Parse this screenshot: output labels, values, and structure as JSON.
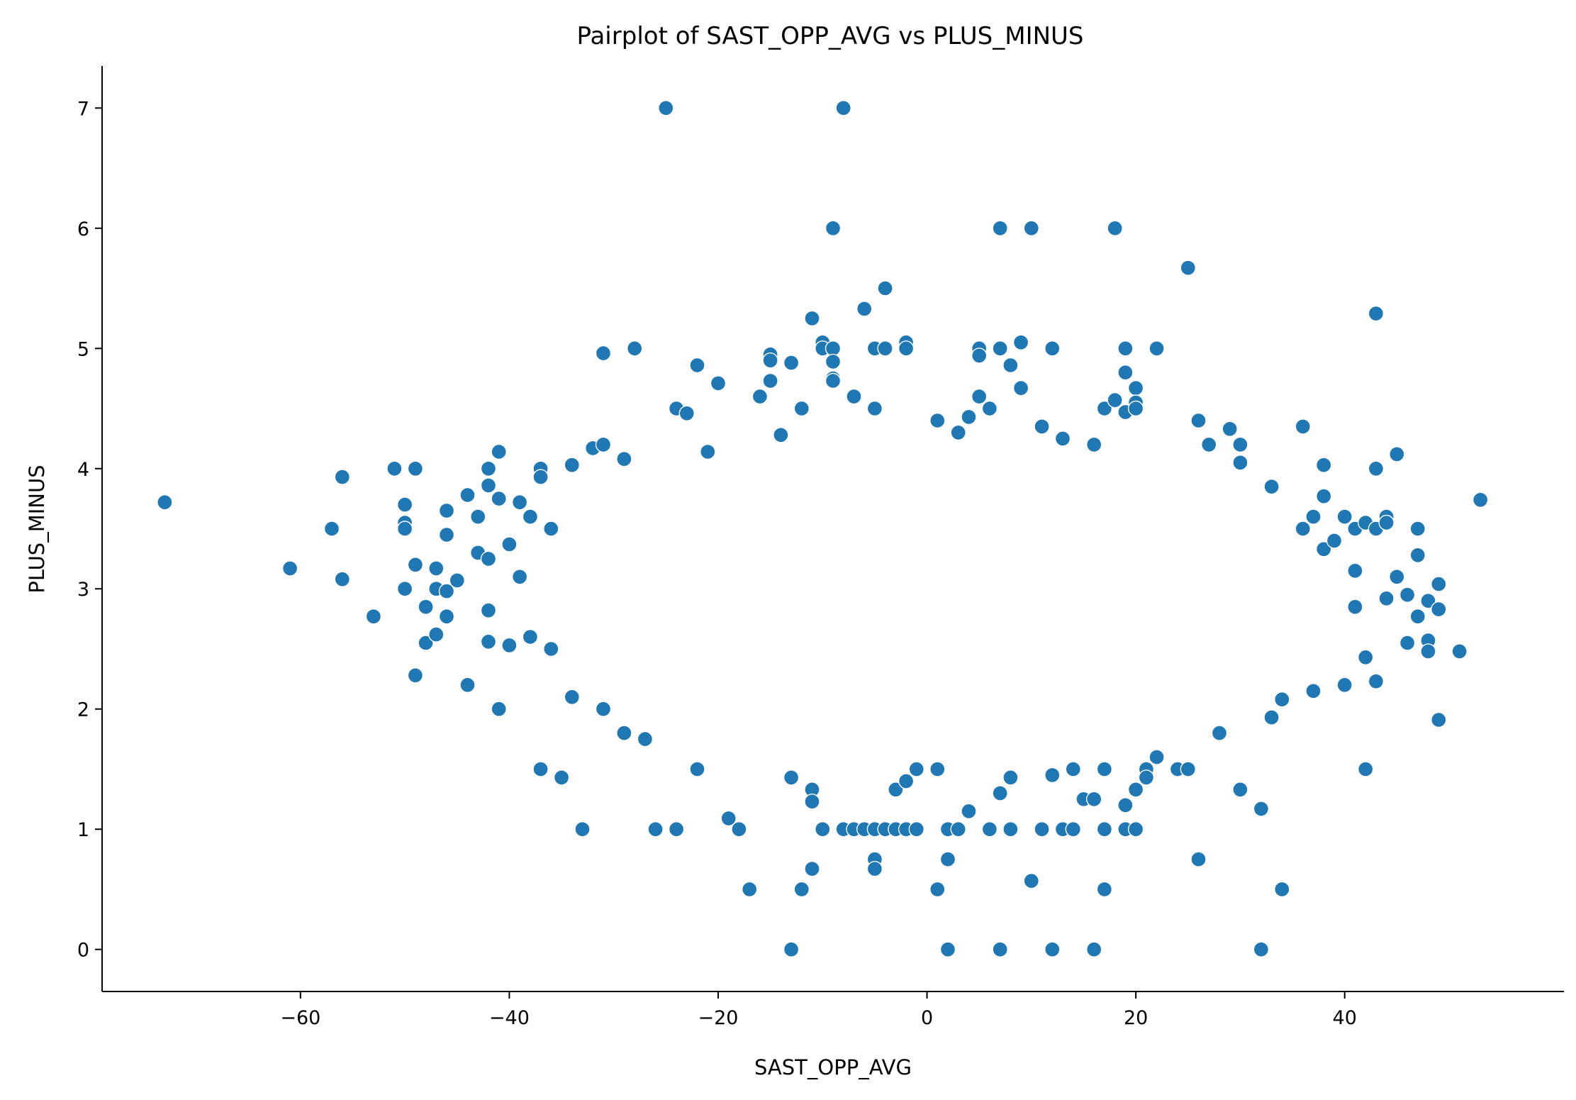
{
  "chart_data": {
    "type": "scatter",
    "title": "Pairplot of SAST_OPP_AVG vs PLUS_MINUS",
    "xlabel": "SAST_OPP_AVG",
    "ylabel": "PLUS_MINUS",
    "xlim": [
      -79,
      61
    ],
    "ylim": [
      -0.35,
      7.35
    ],
    "xticks": [
      -60,
      -40,
      -20,
      0,
      20,
      40
    ],
    "xtick_labels": [
      "−60",
      "−40",
      "−20",
      "0",
      "20",
      "40"
    ],
    "yticks": [
      0,
      1,
      2,
      3,
      4,
      5,
      6,
      7
    ],
    "ytick_labels": [
      "0",
      "1",
      "2",
      "3",
      "4",
      "5",
      "6",
      "7"
    ],
    "grid": false,
    "marker_color": "#1f77b4",
    "marker_edge_color": "#ffffff",
    "points": [
      [
        -73,
        3.72
      ],
      [
        -61,
        3.17
      ],
      [
        -57,
        3.5
      ],
      [
        -56,
        3.93
      ],
      [
        -56,
        3.08
      ],
      [
        -53,
        2.77
      ],
      [
        -51,
        4.0
      ],
      [
        -50,
        3.7
      ],
      [
        -50,
        3.55
      ],
      [
        -50,
        3.5
      ],
      [
        -50,
        3.0
      ],
      [
        -49,
        4.0
      ],
      [
        -49,
        3.2
      ],
      [
        -49,
        2.28
      ],
      [
        -48,
        2.85
      ],
      [
        -48,
        2.55
      ],
      [
        -47,
        3.17
      ],
      [
        -47,
        3.0
      ],
      [
        -47,
        2.62
      ],
      [
        -46,
        3.65
      ],
      [
        -46,
        3.45
      ],
      [
        -46,
        2.98
      ],
      [
        -46,
        2.77
      ],
      [
        -45,
        3.07
      ],
      [
        -44,
        3.78
      ],
      [
        -44,
        2.2
      ],
      [
        -43,
        3.6
      ],
      [
        -43,
        3.3
      ],
      [
        -42,
        4.0
      ],
      [
        -42,
        3.86
      ],
      [
        -42,
        3.25
      ],
      [
        -42,
        2.82
      ],
      [
        -42,
        2.56
      ],
      [
        -41,
        4.14
      ],
      [
        -41,
        3.75
      ],
      [
        -41,
        2.0
      ],
      [
        -40,
        3.37
      ],
      [
        -40,
        2.53
      ],
      [
        -39,
        3.72
      ],
      [
        -39,
        3.1
      ],
      [
        -38,
        3.6
      ],
      [
        -38,
        2.6
      ],
      [
        -37,
        4.0
      ],
      [
        -37,
        3.93
      ],
      [
        -37,
        1.5
      ],
      [
        -36,
        3.5
      ],
      [
        -36,
        2.5
      ],
      [
        -35,
        1.43
      ],
      [
        -34,
        4.03
      ],
      [
        -34,
        2.1
      ],
      [
        -33,
        1.0
      ],
      [
        -32,
        4.17
      ],
      [
        -31,
        4.2
      ],
      [
        -31,
        4.96
      ],
      [
        -31,
        2.0
      ],
      [
        -29,
        4.08
      ],
      [
        -29,
        1.8
      ],
      [
        -28,
        5.0
      ],
      [
        -27,
        1.75
      ],
      [
        -26,
        1.0
      ],
      [
        -25,
        7.0
      ],
      [
        -24,
        4.5
      ],
      [
        -24,
        1.0
      ],
      [
        -23,
        4.46
      ],
      [
        -22,
        4.86
      ],
      [
        -22,
        1.5
      ],
      [
        -21,
        4.14
      ],
      [
        -20,
        4.71
      ],
      [
        -19,
        1.09
      ],
      [
        -18,
        1.0
      ],
      [
        -17,
        0.5
      ],
      [
        -16,
        4.6
      ],
      [
        -15,
        4.95
      ],
      [
        -15,
        4.9
      ],
      [
        -15,
        4.73
      ],
      [
        -14,
        4.28
      ],
      [
        -13,
        4.88
      ],
      [
        -13,
        1.43
      ],
      [
        -13,
        0.0
      ],
      [
        -12,
        4.5
      ],
      [
        -12,
        0.5
      ],
      [
        -11,
        5.25
      ],
      [
        -11,
        1.33
      ],
      [
        -11,
        1.23
      ],
      [
        -11,
        0.67
      ],
      [
        -10,
        5.05
      ],
      [
        -10,
        5.0
      ],
      [
        -10,
        1.0
      ],
      [
        -9,
        5.0
      ],
      [
        -9,
        4.89
      ],
      [
        -9,
        4.75
      ],
      [
        -9,
        4.73
      ],
      [
        -9,
        6.0
      ],
      [
        -8,
        7.0
      ],
      [
        -8,
        1.0
      ],
      [
        -7,
        4.6
      ],
      [
        -7,
        1.0
      ],
      [
        -6,
        5.33
      ],
      [
        -6,
        1.0
      ],
      [
        -5,
        5.0
      ],
      [
        -5,
        4.5
      ],
      [
        -5,
        1.0
      ],
      [
        -5,
        0.75
      ],
      [
        -5,
        0.67
      ],
      [
        -4,
        5.5
      ],
      [
        -4,
        5.0
      ],
      [
        -4,
        1.0
      ],
      [
        -3,
        1.0
      ],
      [
        -3,
        1.33
      ],
      [
        -2,
        5.05
      ],
      [
        -2,
        5.0
      ],
      [
        -2,
        1.0
      ],
      [
        -2,
        1.4
      ],
      [
        -1,
        1.0
      ],
      [
        -1,
        1.5
      ],
      [
        1,
        4.4
      ],
      [
        1,
        1.5
      ],
      [
        1,
        0.5
      ],
      [
        2,
        1.0
      ],
      [
        2,
        0.75
      ],
      [
        2,
        0.0
      ],
      [
        3,
        1.0
      ],
      [
        3,
        4.3
      ],
      [
        4,
        1.15
      ],
      [
        4,
        4.43
      ],
      [
        5,
        5.0
      ],
      [
        5,
        4.94
      ],
      [
        5,
        4.6
      ],
      [
        6,
        1.0
      ],
      [
        6,
        4.5
      ],
      [
        7,
        6.0
      ],
      [
        7,
        5.0
      ],
      [
        7,
        1.3
      ],
      [
        7,
        0.0
      ],
      [
        8,
        4.86
      ],
      [
        8,
        1.0
      ],
      [
        8,
        1.43
      ],
      [
        9,
        5.05
      ],
      [
        9,
        4.67
      ],
      [
        10,
        6.0
      ],
      [
        10,
        0.57
      ],
      [
        11,
        1.0
      ],
      [
        11,
        4.35
      ],
      [
        12,
        5.0
      ],
      [
        12,
        1.45
      ],
      [
        12,
        0.0
      ],
      [
        13,
        4.25
      ],
      [
        13,
        1.0
      ],
      [
        14,
        1.0
      ],
      [
        14,
        1.5
      ],
      [
        15,
        1.25
      ],
      [
        16,
        1.25
      ],
      [
        16,
        4.2
      ],
      [
        16,
        0.0
      ],
      [
        17,
        4.5
      ],
      [
        17,
        1.0
      ],
      [
        17,
        1.5
      ],
      [
        17,
        0.5
      ],
      [
        18,
        6.0
      ],
      [
        18,
        4.57
      ],
      [
        19,
        5.0
      ],
      [
        19,
        4.8
      ],
      [
        19,
        4.47
      ],
      [
        19,
        1.2
      ],
      [
        19,
        1.0
      ],
      [
        20,
        4.67
      ],
      [
        20,
        4.55
      ],
      [
        20,
        4.5
      ],
      [
        20,
        1.33
      ],
      [
        20,
        1.0
      ],
      [
        21,
        1.5
      ],
      [
        21,
        1.43
      ],
      [
        22,
        5.0
      ],
      [
        22,
        1.6
      ],
      [
        24,
        1.5
      ],
      [
        25,
        5.67
      ],
      [
        25,
        1.5
      ],
      [
        26,
        4.4
      ],
      [
        26,
        0.75
      ],
      [
        27,
        4.2
      ],
      [
        28,
        1.8
      ],
      [
        29,
        4.33
      ],
      [
        30,
        4.2
      ],
      [
        30,
        4.05
      ],
      [
        30,
        1.33
      ],
      [
        32,
        1.17
      ],
      [
        32,
        0.0
      ],
      [
        33,
        3.85
      ],
      [
        33,
        1.93
      ],
      [
        34,
        0.5
      ],
      [
        34,
        2.08
      ],
      [
        36,
        4.35
      ],
      [
        36,
        3.5
      ],
      [
        37,
        3.6
      ],
      [
        37,
        2.15
      ],
      [
        38,
        4.03
      ],
      [
        38,
        3.77
      ],
      [
        38,
        3.33
      ],
      [
        39,
        3.4
      ],
      [
        40,
        3.6
      ],
      [
        40,
        2.2
      ],
      [
        41,
        3.5
      ],
      [
        41,
        3.15
      ],
      [
        41,
        2.85
      ],
      [
        42,
        3.55
      ],
      [
        42,
        2.43
      ],
      [
        42,
        1.5
      ],
      [
        43,
        5.29
      ],
      [
        43,
        4.0
      ],
      [
        43,
        3.5
      ],
      [
        43,
        2.23
      ],
      [
        44,
        3.6
      ],
      [
        44,
        3.55
      ],
      [
        44,
        2.92
      ],
      [
        45,
        4.12
      ],
      [
        45,
        3.1
      ],
      [
        46,
        2.95
      ],
      [
        46,
        2.55
      ],
      [
        47,
        3.5
      ],
      [
        47,
        3.28
      ],
      [
        47,
        2.77
      ],
      [
        48,
        2.57
      ],
      [
        48,
        2.48
      ],
      [
        48,
        2.9
      ],
      [
        49,
        3.04
      ],
      [
        49,
        2.83
      ],
      [
        49,
        1.91
      ],
      [
        51,
        2.48
      ],
      [
        53,
        3.74
      ]
    ]
  }
}
